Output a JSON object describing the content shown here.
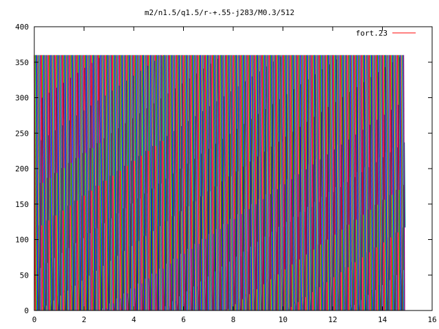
{
  "chart_data": {
    "type": "line",
    "title": "m2/n1.5/q1.5/r-+.55-j283/M0.3/512",
    "xlabel": "",
    "ylabel": "",
    "xlim": [
      0,
      16
    ],
    "ylim": [
      0,
      400
    ],
    "x_ticks": [
      0,
      2,
      4,
      6,
      8,
      10,
      12,
      14,
      16
    ],
    "y_ticks": [
      0,
      50,
      100,
      150,
      200,
      250,
      300,
      350,
      400
    ],
    "grid": false,
    "legend_position": "top-right",
    "series": [
      {
        "name": "fort.23",
        "color": "#ff0000",
        "x_range": [
          0,
          14.9
        ],
        "wrap_period": 360,
        "description_values": {
          "x_start": 0,
          "x_end": 14.9,
          "y_min": 0,
          "y_max": 360
        }
      }
    ],
    "trace_colors": [
      "#ff0000",
      "#00a000",
      "#0000ff",
      "#a05000",
      "#008080",
      "#800080"
    ]
  }
}
